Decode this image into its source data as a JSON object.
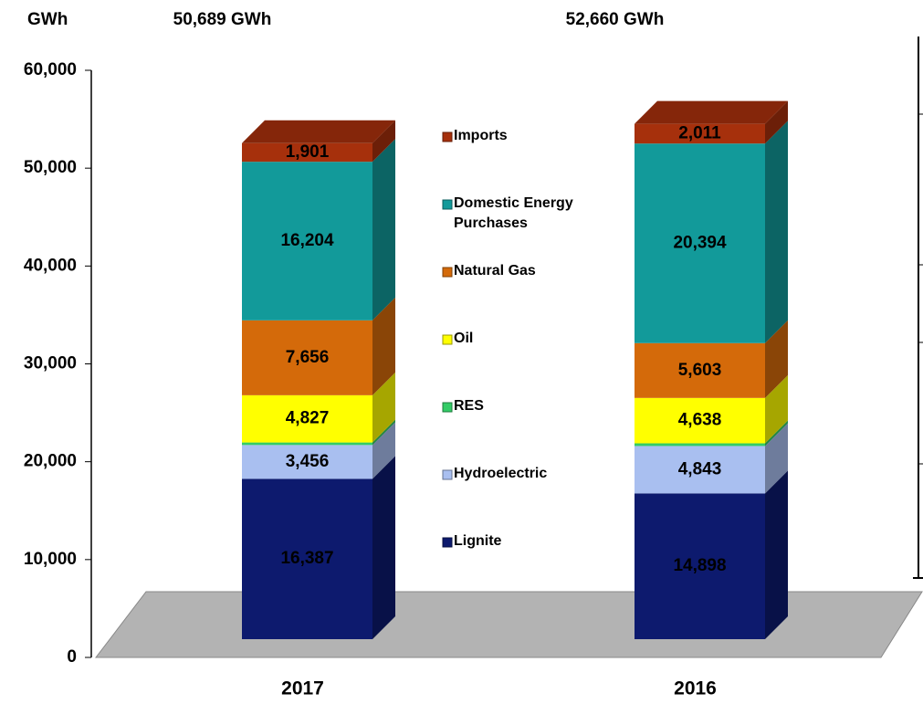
{
  "chart_data": {
    "type": "bar3d_stacked",
    "y_label": "GWh",
    "categories": [
      "2017",
      "2016"
    ],
    "annotations": [
      "50,689 GWh",
      "52,660 GWh"
    ],
    "series": [
      {
        "name": "Lignite",
        "color": "#0d1a6e",
        "values": [
          16387,
          14898
        ],
        "value_labels": [
          "16,387",
          "14,898"
        ]
      },
      {
        "name": "Hydroelectric",
        "color": "#a9bff0",
        "values": [
          3456,
          4843
        ],
        "value_labels": [
          "3,456",
          "4,843"
        ]
      },
      {
        "name": "RES",
        "color": "#33cc66",
        "values": [
          258,
          273
        ],
        "value_labels": [
          "258",
          "273"
        ]
      },
      {
        "name": "Oil",
        "color": "#ffff00",
        "values": [
          4827,
          4638
        ],
        "value_labels": [
          "4,827",
          "4,638"
        ]
      },
      {
        "name": "Natural Gas",
        "color": "#d46a0a",
        "values": [
          7656,
          5603
        ],
        "value_labels": [
          "7,656",
          "5,603"
        ]
      },
      {
        "name": "Domestic Energy Purchases",
        "color": "#129a9a",
        "values": [
          16204,
          20394
        ],
        "value_labels": [
          "16,204",
          "20,394"
        ]
      },
      {
        "name": "Imports",
        "color": "#a6300c",
        "values": [
          1901,
          2011
        ],
        "value_labels": [
          "1,901",
          "2,011"
        ]
      }
    ],
    "ylim": [
      0,
      60000
    ],
    "yticks": [
      0,
      {
        "value": 10000,
        "label": "10,000"
      },
      {
        "value": 20000,
        "label": "20,000"
      },
      {
        "value": 30000,
        "label": "30,000"
      },
      {
        "value": 40000,
        "label": "40,000"
      },
      {
        "value": 50000,
        "label": "50,000"
      },
      {
        "value": 60000,
        "label": "60,000"
      }
    ]
  }
}
